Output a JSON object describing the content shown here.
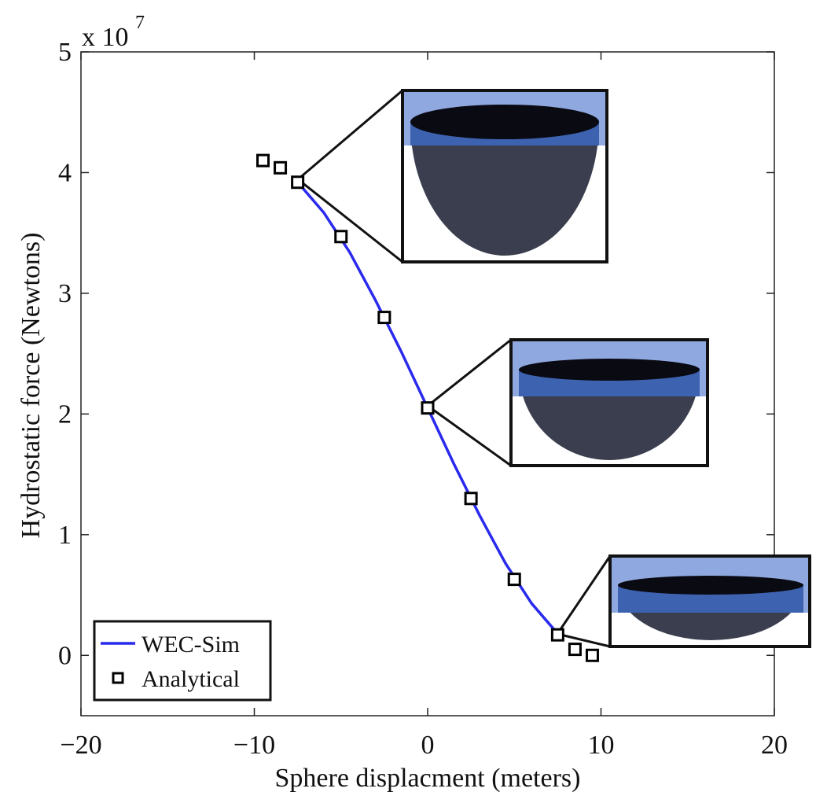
{
  "chart_data": {
    "type": "line",
    "x_label": "Sphere displacment (meters)",
    "y_label": "Hydrostatic force (Newtons)",
    "y_multiplier": "x 10",
    "y_exponent": "7",
    "xlim": [
      -20,
      20
    ],
    "xticks": [
      {
        "value": -20,
        "label": "−20"
      },
      {
        "value": -10,
        "label": "−10"
      },
      0,
      10,
      20
    ],
    "ylim": [
      -0.5,
      5
    ],
    "yticks": [
      0,
      1,
      2,
      3,
      4,
      5
    ],
    "legend": "lower left",
    "series": [
      {
        "name": "WEC-Sim",
        "color": "#2a2aee",
        "marker": "none",
        "x": [
          -7.5,
          -6,
          -4.5,
          -3,
          -1.5,
          0,
          1.5,
          3,
          4.5,
          6,
          7.5
        ],
        "values": [
          3.92,
          3.67,
          3.34,
          2.94,
          2.51,
          2.05,
          1.59,
          1.16,
          0.76,
          0.43,
          0.18
        ]
      },
      {
        "name": "Analytical",
        "color": "#000000",
        "marker": "square",
        "x": [
          -9.5,
          -8.5,
          -7.5,
          -5,
          -2.5,
          0,
          2.5,
          5,
          7.5,
          8.5,
          9.5
        ],
        "values": [
          4.1,
          4.04,
          3.92,
          3.47,
          2.8,
          2.05,
          1.3,
          0.63,
          0.17,
          0.05,
          0.0
        ]
      }
    ]
  }
}
